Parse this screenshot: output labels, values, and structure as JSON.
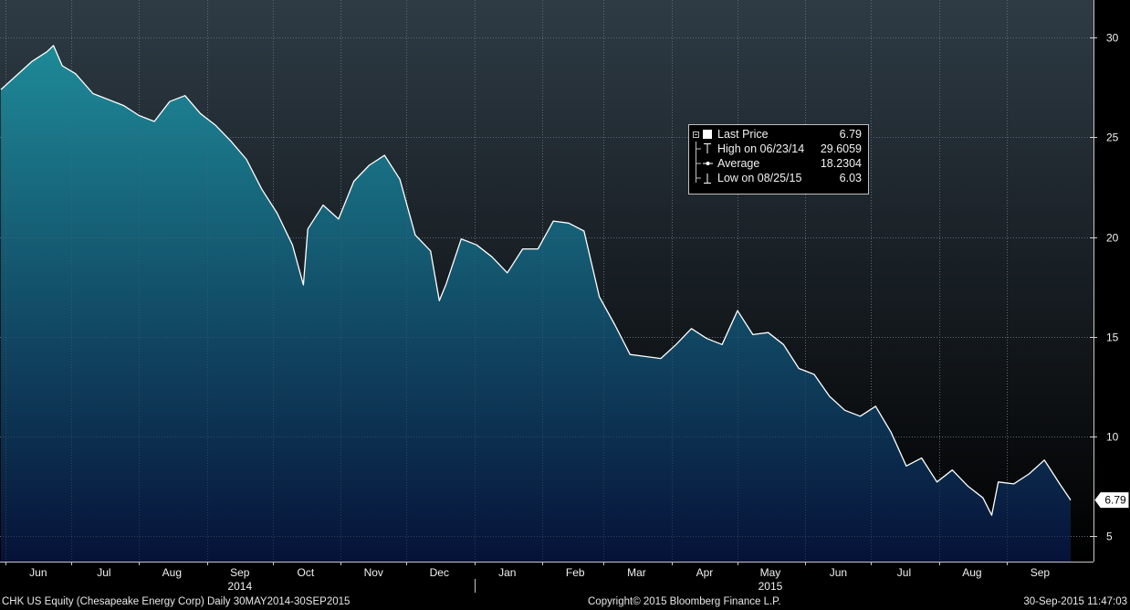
{
  "chart_data": {
    "type": "area",
    "ticker": "CHK US Equity",
    "y_ticks": [
      5,
      10,
      15,
      20,
      25,
      30
    ],
    "ylim": [
      3.7,
      31.9
    ],
    "x_labels": [
      "Jun",
      "Jul",
      "Aug",
      "Sep",
      "Oct",
      "Nov",
      "Dec",
      "Jan",
      "Feb",
      "Mar",
      "Apr",
      "May",
      "Jun",
      "Jul",
      "Aug",
      "Sep"
    ],
    "year_labels": [
      "2014",
      "2015"
    ],
    "last_value_label": "6.79",
    "legend": [
      {
        "label": "Last Price",
        "value": "6.79",
        "icon": "square-icon"
      },
      {
        "label": "High on 06/23/14",
        "value": "29.6059",
        "icon": "high-marker-icon"
      },
      {
        "label": "Average",
        "value": "18.2304",
        "icon": "average-marker-icon"
      },
      {
        "label": "Low on 08/25/15",
        "value": "6.03",
        "icon": "low-marker-icon"
      }
    ],
    "series": [
      {
        "name": "Last Price",
        "x": [
          "2014-05-30",
          "2014-06-06",
          "2014-06-13",
          "2014-06-20",
          "2014-06-23",
          "2014-06-27",
          "2014-07-03",
          "2014-07-11",
          "2014-07-18",
          "2014-07-25",
          "2014-08-01",
          "2014-08-08",
          "2014-08-15",
          "2014-08-22",
          "2014-08-29",
          "2014-09-05",
          "2014-09-12",
          "2014-09-19",
          "2014-09-26",
          "2014-10-03",
          "2014-10-10",
          "2014-10-15",
          "2014-10-17",
          "2014-10-24",
          "2014-10-31",
          "2014-11-07",
          "2014-11-14",
          "2014-11-21",
          "2014-11-28",
          "2014-12-05",
          "2014-12-12",
          "2014-12-16",
          "2014-12-19",
          "2014-12-26",
          "2015-01-02",
          "2015-01-09",
          "2015-01-16",
          "2015-01-23",
          "2015-01-30",
          "2015-02-06",
          "2015-02-13",
          "2015-02-20",
          "2015-02-27",
          "2015-03-06",
          "2015-03-13",
          "2015-03-20",
          "2015-03-27",
          "2015-04-03",
          "2015-04-10",
          "2015-04-17",
          "2015-04-24",
          "2015-05-01",
          "2015-05-08",
          "2015-05-15",
          "2015-05-22",
          "2015-05-29",
          "2015-06-05",
          "2015-06-12",
          "2015-06-19",
          "2015-06-26",
          "2015-07-03",
          "2015-07-10",
          "2015-07-17",
          "2015-07-24",
          "2015-07-31",
          "2015-08-07",
          "2015-08-14",
          "2015-08-21",
          "2015-08-25",
          "2015-08-28",
          "2015-09-04",
          "2015-09-11",
          "2015-09-18",
          "2015-09-25",
          "2015-09-30"
        ],
        "values": [
          27.4,
          28.1,
          28.8,
          29.3,
          29.61,
          28.6,
          28.2,
          27.2,
          26.9,
          26.6,
          26.1,
          25.8,
          26.8,
          27.1,
          26.2,
          25.6,
          24.8,
          23.9,
          22.4,
          21.2,
          19.6,
          17.6,
          20.4,
          21.6,
          20.9,
          22.8,
          23.6,
          24.1,
          22.9,
          20.1,
          19.3,
          16.8,
          17.6,
          19.9,
          19.6,
          19.0,
          18.2,
          19.4,
          19.4,
          20.8,
          20.7,
          20.3,
          17.0,
          15.6,
          14.1,
          14.0,
          13.9,
          14.6,
          15.4,
          14.9,
          14.6,
          16.3,
          15.1,
          15.2,
          14.6,
          13.4,
          13.1,
          12.0,
          11.3,
          11.0,
          11.5,
          10.2,
          8.5,
          8.9,
          7.7,
          8.3,
          7.5,
          6.9,
          6.03,
          7.7,
          7.6,
          8.1,
          8.8,
          7.6,
          6.79
        ]
      }
    ],
    "grid": true,
    "colors": {
      "background_top": "#2e3b45",
      "background_bottom": "#000000",
      "fill_top": "#1e8a98",
      "fill_bottom": "#061238",
      "line": "#ffffff"
    }
  },
  "footer": {
    "left": "CHK US Equity (Chesapeake Energy Corp)  Daily 30MAY2014-30SEP2015",
    "center": "Copyright© 2015 Bloomberg Finance L.P.",
    "right": "30-Sep-2015 11:47:03"
  }
}
